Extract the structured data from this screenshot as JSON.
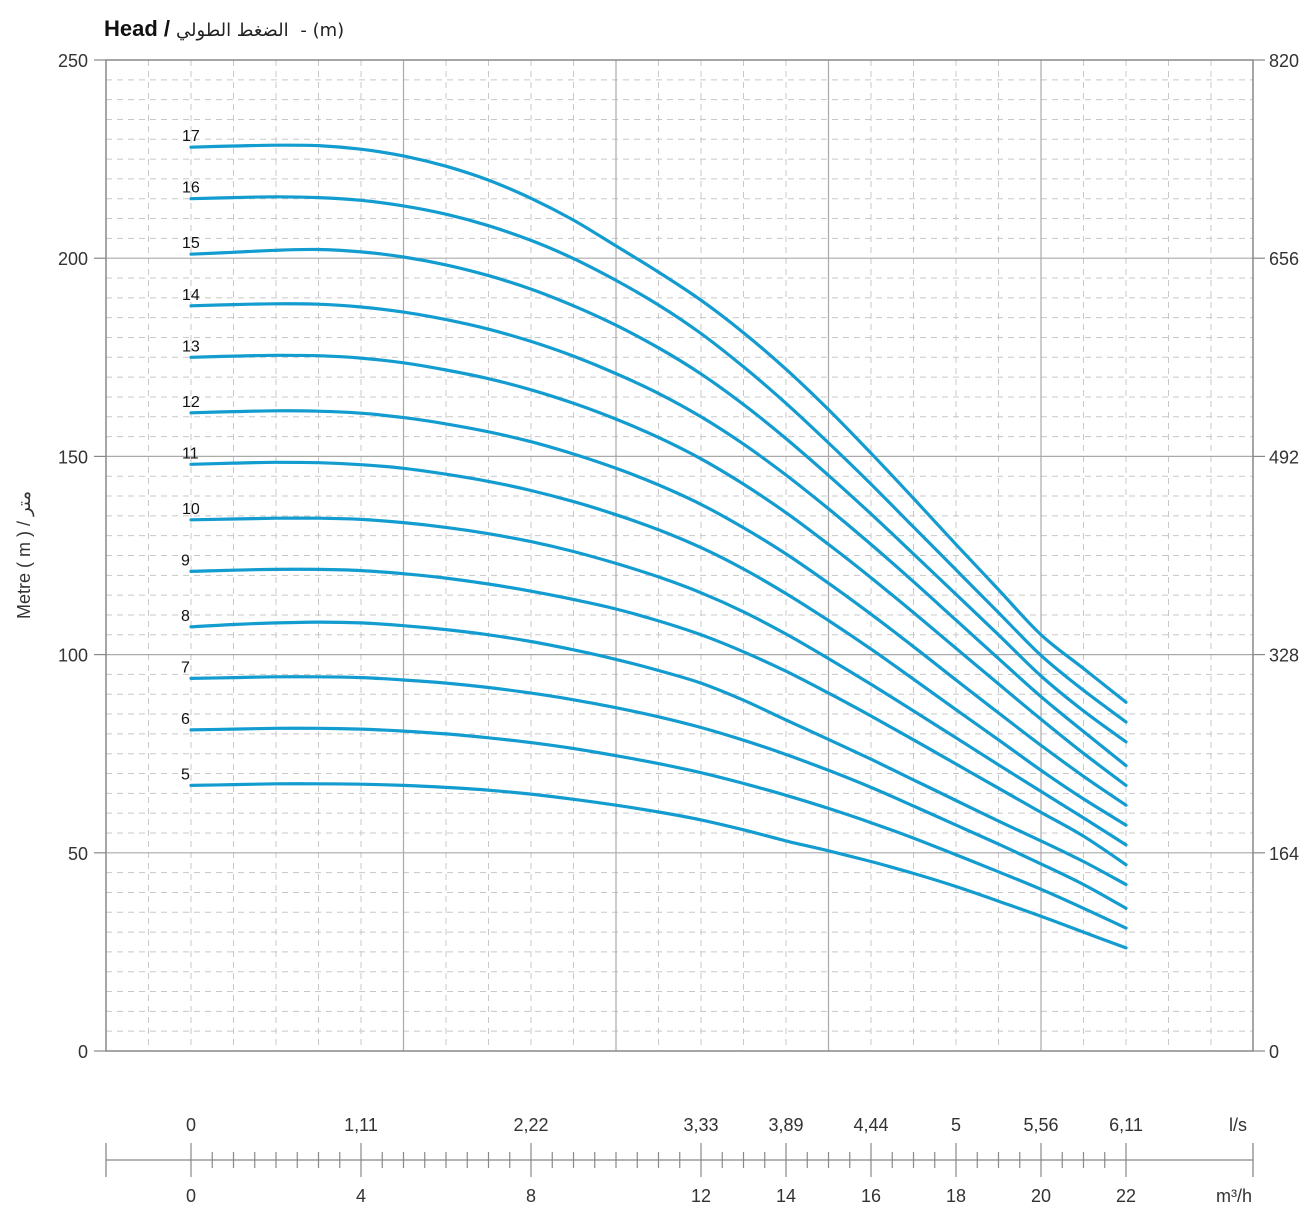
{
  "chart_data": {
    "type": "line",
    "title_prefix": "Head /",
    "title_arabic": "الضغط الطولي",
    "title_suffix": " - (m)",
    "ylabel": "Metre ( m ) / متر",
    "ylim": [
      0,
      250
    ],
    "xlim": [
      0,
      27
    ],
    "left_ticks": [
      0,
      50,
      100,
      150,
      200,
      250
    ],
    "right_ticks": [
      {
        "value": 0,
        "label": "0"
      },
      {
        "value": 50,
        "label": "164"
      },
      {
        "value": 100,
        "label": "328"
      },
      {
        "value": 150,
        "label": "492"
      },
      {
        "value": 200,
        "label": "656"
      },
      {
        "value": 250,
        "label": "820"
      }
    ],
    "flow_ls": {
      "unit": "l/s",
      "ticks": [
        {
          "x": 0,
          "label": "0"
        },
        {
          "x": 4,
          "label": "1,11"
        },
        {
          "x": 8,
          "label": "2,22"
        },
        {
          "x": 12,
          "label": "3,33"
        },
        {
          "x": 14,
          "label": "3,89"
        },
        {
          "x": 16,
          "label": "4,44"
        },
        {
          "x": 18,
          "label": "5"
        },
        {
          "x": 20,
          "label": "5,56"
        },
        {
          "x": 22,
          "label": "6,11"
        }
      ]
    },
    "flow_m3h": {
      "unit": "m³/h",
      "ticks": [
        {
          "x": 0,
          "label": "0"
        },
        {
          "x": 4,
          "label": "4"
        },
        {
          "x": 8,
          "label": "8"
        },
        {
          "x": 12,
          "label": "12"
        },
        {
          "x": 14,
          "label": "14"
        },
        {
          "x": 16,
          "label": "16"
        },
        {
          "x": 18,
          "label": "18"
        },
        {
          "x": 20,
          "label": "20"
        },
        {
          "x": 22,
          "label": "22"
        }
      ]
    },
    "x": [
      0,
      1,
      2,
      3,
      4,
      5,
      6,
      7,
      8,
      9,
      10,
      11,
      12,
      13,
      14,
      15,
      16,
      17,
      18,
      19,
      20,
      21,
      22
    ],
    "series": [
      {
        "name": "5",
        "values": [
          67,
          67.2,
          67.4,
          67.4,
          67.3,
          67,
          66.5,
          65.8,
          64.8,
          63.5,
          62,
          60.3,
          58.3,
          55.8,
          53,
          50.5,
          47.8,
          44.8,
          41.5,
          37.8,
          34,
          30,
          26
        ]
      },
      {
        "name": "6",
        "values": [
          81,
          81.2,
          81.4,
          81.4,
          81.2,
          80.7,
          80,
          79,
          77.8,
          76.3,
          74.5,
          72.5,
          70.2,
          67.5,
          64.5,
          61.2,
          57.6,
          53.7,
          49.5,
          45.2,
          40.8,
          36,
          31
        ]
      },
      {
        "name": "7",
        "values": [
          94,
          94.2,
          94.4,
          94.4,
          94.2,
          93.6,
          92.8,
          91.7,
          90.3,
          88.6,
          86.6,
          84.3,
          81.6,
          78.4,
          74.8,
          70.8,
          66.5,
          61.8,
          57,
          52.2,
          47.2,
          42,
          36
        ]
      },
      {
        "name": "8",
        "values": [
          107,
          107.6,
          108,
          108.2,
          108,
          107.3,
          106.3,
          105,
          103.3,
          101.2,
          98.8,
          96,
          92.8,
          88.5,
          83.5,
          78.6,
          73.6,
          68.4,
          63.2,
          58,
          53,
          47.8,
          42
        ]
      },
      {
        "name": "9",
        "values": [
          121,
          121.3,
          121.5,
          121.5,
          121.2,
          120.4,
          119.3,
          117.8,
          116,
          113.9,
          111.5,
          108.5,
          105,
          100.7,
          95.8,
          90.3,
          84.5,
          78.5,
          72.4,
          66.3,
          60.2,
          54.2,
          47
        ]
      },
      {
        "name": "10",
        "values": [
          134,
          134.2,
          134.4,
          134.4,
          134.1,
          133.3,
          132.1,
          130.5,
          128.5,
          126,
          123,
          119.6,
          115.6,
          110.8,
          105.2,
          99,
          92.5,
          85.8,
          79,
          72.2,
          65.5,
          58.8,
          52
        ]
      },
      {
        "name": "11",
        "values": [
          148,
          148.3,
          148.5,
          148.4,
          147.9,
          147,
          145.5,
          143.7,
          141.4,
          138.6,
          135.3,
          131.5,
          127,
          121.6,
          115.4,
          108.6,
          101.4,
          93.8,
          86.1,
          78.5,
          70.8,
          63.6,
          57
        ]
      },
      {
        "name": "12",
        "values": [
          161,
          161.3,
          161.5,
          161.4,
          160.9,
          159.8,
          158.2,
          156.2,
          153.7,
          150.6,
          147,
          142.8,
          137.9,
          132,
          125.4,
          118,
          110.2,
          102,
          93.6,
          85.3,
          77.1,
          69.3,
          62
        ]
      },
      {
        "name": "13",
        "values": [
          175,
          175.3,
          175.5,
          175.4,
          174.8,
          173.6,
          171.8,
          169.6,
          166.8,
          163.4,
          159.4,
          154.8,
          149.4,
          143,
          135.8,
          127.8,
          119.4,
          110.6,
          101.6,
          92.6,
          83.7,
          75.1,
          67
        ]
      },
      {
        "name": "14",
        "values": [
          188,
          188.3,
          188.5,
          188.4,
          187.7,
          186.4,
          184.5,
          182.1,
          179,
          175.3,
          170.9,
          165.9,
          160,
          153.1,
          145.3,
          136.8,
          127.8,
          118.4,
          108.7,
          99,
          89.4,
          80.6,
          72
        ]
      },
      {
        "name": "15",
        "values": [
          201,
          201.5,
          202,
          202.2,
          201.6,
          200.3,
          198.3,
          195.6,
          192.2,
          188,
          183.1,
          177.4,
          170.8,
          163.1,
          154.5,
          145.2,
          135.5,
          125.4,
          115.2,
          105,
          94.6,
          85.8,
          78
        ]
      },
      {
        "name": "16",
        "values": [
          215,
          215.3,
          215.5,
          215.3,
          214.6,
          213.2,
          211.1,
          208.2,
          204.5,
          199.9,
          194.4,
          188.2,
          181,
          172.6,
          163.4,
          153.4,
          143,
          132.2,
          121.4,
          110.6,
          99.8,
          91,
          83
        ]
      },
      {
        "name": "17",
        "values": [
          228,
          228.3,
          228.5,
          228.4,
          227.5,
          225.8,
          223.2,
          219.7,
          215.1,
          209.6,
          203.1,
          196.5,
          189.4,
          181.2,
          172,
          161.8,
          150.8,
          139.4,
          127.8,
          116.4,
          105,
          96.5,
          88
        ]
      }
    ],
    "line_color": "#139ccf",
    "grid_major_color": "#aaaaaa",
    "grid_minor_color": "#c8c8c8",
    "axis_color": "#888888",
    "grid": true,
    "legend": "inline-left"
  }
}
